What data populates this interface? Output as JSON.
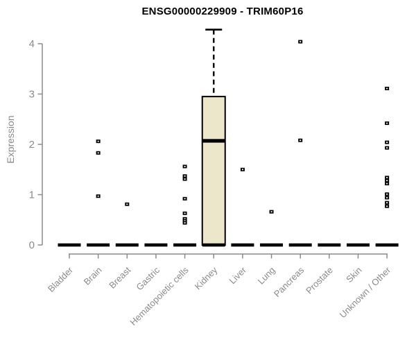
{
  "chart_data": {
    "type": "boxplot",
    "title": "ENSG00000229909 - TRIM60P16",
    "ylabel": "Expression",
    "xlabel": "",
    "ylim": [
      0,
      4.3
    ],
    "yticks": [
      0,
      1,
      2,
      3,
      4
    ],
    "grid": false,
    "legend": "none",
    "categories": [
      "Bladder",
      "Brain",
      "Breast",
      "Gastric",
      "Hematopoietic cells",
      "Kidney",
      "Liver",
      "Lung",
      "Pancreas",
      "Prostate",
      "Skin",
      "Unknown / Other"
    ],
    "boxes": [
      {
        "category": "Bladder",
        "q1": 0,
        "median": 0,
        "q3": 0,
        "whisker_low": 0,
        "whisker_high": 0,
        "outliers": []
      },
      {
        "category": "Brain",
        "q1": 0,
        "median": 0,
        "q3": 0,
        "whisker_low": 0,
        "whisker_high": 0,
        "outliers": [
          2.06,
          1.83,
          0.97
        ]
      },
      {
        "category": "Breast",
        "q1": 0,
        "median": 0,
        "q3": 0,
        "whisker_low": 0,
        "whisker_high": 0,
        "outliers": [
          0.81
        ]
      },
      {
        "category": "Gastric",
        "q1": 0,
        "median": 0,
        "q3": 0,
        "whisker_low": 0,
        "whisker_high": 0,
        "outliers": []
      },
      {
        "category": "Hematopoietic cells",
        "q1": 0,
        "median": 0,
        "q3": 0,
        "whisker_low": 0,
        "whisker_high": 0,
        "outliers": [
          1.56,
          1.37,
          1.31,
          0.92,
          0.63,
          0.52,
          0.48,
          0.44
        ]
      },
      {
        "category": "Kidney",
        "q1": 0,
        "median": 2.07,
        "q3": 2.95,
        "whisker_low": 0,
        "whisker_high": 4.28,
        "outliers": []
      },
      {
        "category": "Liver",
        "q1": 0,
        "median": 0,
        "q3": 0,
        "whisker_low": 0,
        "whisker_high": 0,
        "outliers": [
          1.5
        ]
      },
      {
        "category": "Lung",
        "q1": 0,
        "median": 0,
        "q3": 0,
        "whisker_low": 0,
        "whisker_high": 0,
        "outliers": [
          0.66
        ]
      },
      {
        "category": "Pancreas",
        "q1": 0,
        "median": 0,
        "q3": 0,
        "whisker_low": 0,
        "whisker_high": 0,
        "outliers": [
          4.04,
          2.08
        ]
      },
      {
        "category": "Prostate",
        "q1": 0,
        "median": 0,
        "q3": 0,
        "whisker_low": 0,
        "whisker_high": 0,
        "outliers": []
      },
      {
        "category": "Skin",
        "q1": 0,
        "median": 0,
        "q3": 0,
        "whisker_low": 0,
        "whisker_high": 0,
        "outliers": []
      },
      {
        "category": "Unknown / Other",
        "q1": 0,
        "median": 0,
        "q3": 0,
        "whisker_low": 0,
        "whisker_high": 0,
        "outliers": [
          3.11,
          2.42,
          2.04,
          1.93,
          1.34,
          1.28,
          1.22,
          1.01,
          0.94,
          0.84,
          0.77
        ]
      }
    ],
    "style": {
      "box_fill": "#ECE6CB",
      "box_border": "#000000",
      "median_color": "#000000",
      "whisker_color": "#000000",
      "outlier_color": "#000000",
      "axis_color": "#8a8a8a",
      "text_color": "#8a8a8a",
      "title_color": "#000000",
      "background": "#ffffff"
    }
  }
}
